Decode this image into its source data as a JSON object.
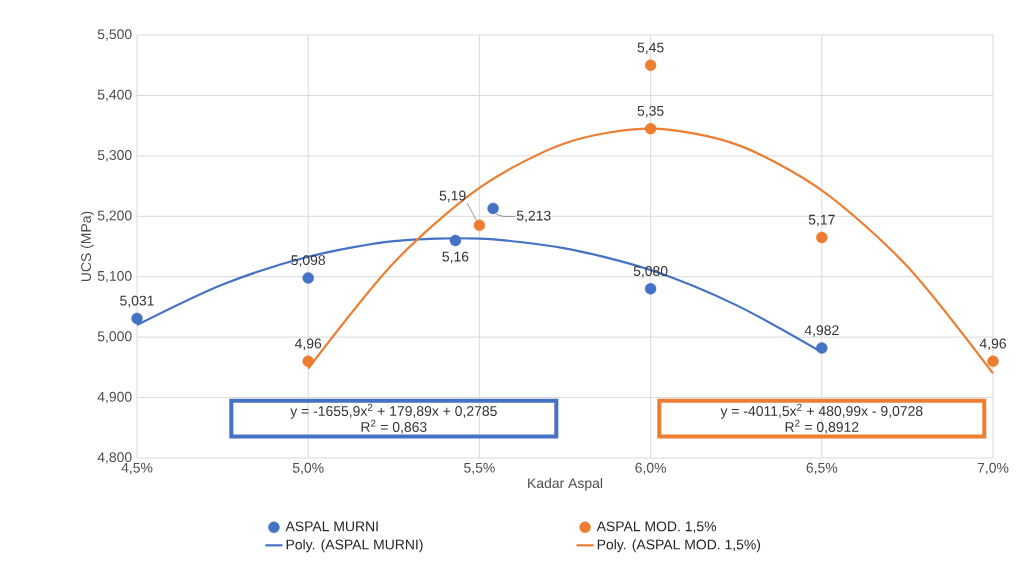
{
  "chart_data": {
    "type": "scatter",
    "xlabel": "Kadar Aspal",
    "ylabel": "UCS (MPa)",
    "xlim": [
      4.5,
      7.0
    ],
    "xticks": [
      {
        "value": 4.5,
        "label": "4,5%"
      },
      {
        "value": 5.0,
        "label": "5,0%"
      },
      {
        "value": 5.5,
        "label": "5,5%"
      },
      {
        "value": 6.0,
        "label": "6,0%"
      },
      {
        "value": 6.5,
        "label": "6,5%"
      },
      {
        "value": 7.0,
        "label": "7,0%"
      }
    ],
    "ylim": [
      4.8,
      5.5
    ],
    "yticks": [
      {
        "value": 4.8,
        "label": "4,800"
      },
      {
        "value": 4.9,
        "label": "4,900"
      },
      {
        "value": 5.0,
        "label": "5,000"
      },
      {
        "value": 5.1,
        "label": "5,100"
      },
      {
        "value": 5.2,
        "label": "5,200"
      },
      {
        "value": 5.3,
        "label": "5,300"
      },
      {
        "value": 5.4,
        "label": "5,400"
      },
      {
        "value": 5.5,
        "label": "5,500"
      }
    ],
    "grid": true,
    "legend": "bottom",
    "series": [
      {
        "name": "ASPAL MURNI",
        "marker": "circle",
        "color": "#4472c4",
        "x": [
          4.5,
          5.0,
          5.43,
          5.54,
          6.0,
          6.5
        ],
        "values": [
          5.031,
          5.098,
          5.16,
          5.213,
          5.08,
          4.982
        ],
        "value_labels": [
          "5,031",
          "5,098",
          "5,16",
          "5,213",
          "5,080",
          "4,982"
        ]
      },
      {
        "name": "ASPAL MOD. 1,5%",
        "marker": "circle",
        "color": "#ed7d31",
        "x": [
          5.0,
          5.5,
          6.0,
          6.0,
          6.5,
          7.0
        ],
        "values": [
          4.96,
          5.185,
          5.45,
          5.345,
          5.165,
          4.96
        ],
        "value_labels": [
          "4,96",
          "5,19",
          "5,45",
          "5,35",
          "5,17",
          "4,96"
        ]
      },
      {
        "name": "Poly. (ASPAL MURNI)",
        "type": "line",
        "color": "#4472c4",
        "x": [
          4.5,
          4.75,
          5.0,
          5.25,
          5.5,
          5.75,
          6.0,
          6.25,
          6.5
        ],
        "values": [
          5.02,
          5.087,
          5.133,
          5.159,
          5.163,
          5.147,
          5.111,
          5.053,
          4.975
        ]
      },
      {
        "name": "Poly. (ASPAL MOD. 1,5%)",
        "type": "line",
        "color": "#ed7d31",
        "x": [
          5.0,
          5.25,
          5.5,
          5.75,
          6.0,
          6.25,
          6.5,
          6.75,
          7.0
        ],
        "values": [
          4.948,
          5.123,
          5.247,
          5.321,
          5.345,
          5.319,
          5.243,
          5.117,
          4.94
        ]
      }
    ],
    "annotations": [
      "y = -1655,9x$^{2}$ + 179,89x + 0,2785",
      "R$^{2}$ = 0,863",
      "y = -4011,5x$^{2}$ + 480,99x - 9,0728",
      "R$^{2}$ = 0,8912"
    ]
  }
}
